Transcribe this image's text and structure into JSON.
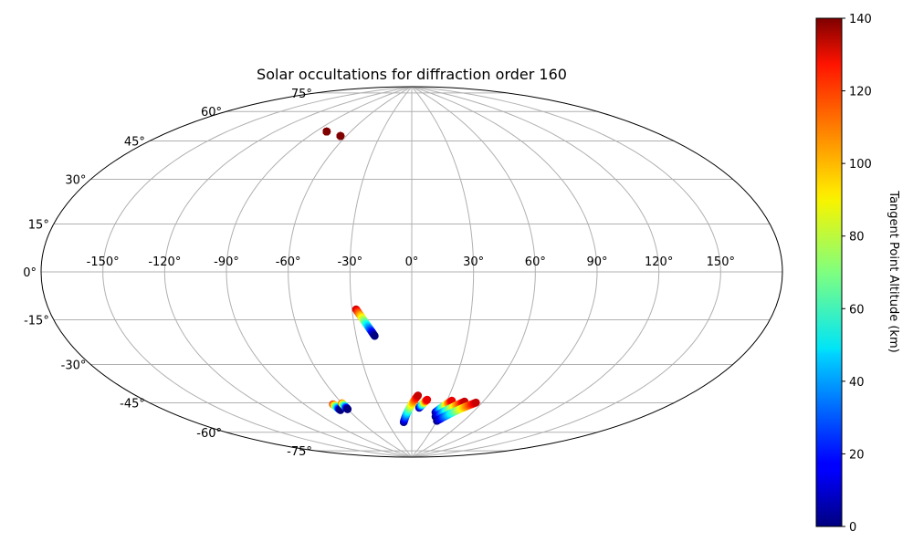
{
  "chart_data": {
    "type": "scatter",
    "projection": "aitoff-like",
    "title": "Solar occultations for diffraction order 160",
    "xlabel": "",
    "ylabel": "",
    "grid": true,
    "x_ticks": [
      "-150°",
      "-120°",
      "-90°",
      "-60°",
      "-30°",
      "0°",
      "30°",
      "60°",
      "90°",
      "120°",
      "150°"
    ],
    "x_tick_values": [
      -150,
      -120,
      -90,
      -60,
      -30,
      0,
      30,
      60,
      90,
      120,
      150
    ],
    "y_ticks": [
      "75°",
      "60°",
      "45°",
      "30°",
      "15°",
      "0°",
      "-15°",
      "-30°",
      "-45°",
      "-60°",
      "-75°"
    ],
    "y_tick_values": [
      75,
      60,
      45,
      30,
      15,
      0,
      -15,
      -30,
      -45,
      -60,
      -75
    ],
    "colorbar": {
      "label": "Tangent Point Altitude (km)",
      "range": [
        0,
        140
      ],
      "ticks": [
        "0",
        "20",
        "40",
        "60",
        "80",
        "100",
        "120",
        "140"
      ],
      "tick_values": [
        0,
        20,
        40,
        60,
        80,
        100,
        120,
        140
      ],
      "colormap": "jet"
    },
    "tracks": [
      {
        "lon_start": -81,
        "lat_start": 65,
        "lon_end": -81,
        "lat_end": 65,
        "alt_start": 130,
        "alt_end": 140
      },
      {
        "lon_start": -65,
        "lat_start": 64,
        "lon_end": -65,
        "lat_end": 64,
        "alt_start": 130,
        "alt_end": 140
      },
      {
        "lon_start": -28,
        "lat_start": -18,
        "lon_end": -20,
        "lat_end": -31,
        "alt_start": 130,
        "alt_end": 0
      },
      {
        "lon_start": -68,
        "lat_start": -62,
        "lon_end": -67,
        "lat_end": -65,
        "alt_start": 120,
        "alt_end": 0
      },
      {
        "lon_start": -60,
        "lat_start": -62,
        "lon_end": -60,
        "lat_end": -65,
        "alt_start": 110,
        "alt_end": 0
      },
      {
        "lon_start": -10,
        "lat_start": -73,
        "lon_end": 5,
        "lat_end": -60,
        "alt_start": 0,
        "alt_end": 130
      },
      {
        "lon_start": 7,
        "lat_start": -66,
        "lon_end": 13,
        "lat_end": -62,
        "alt_start": 0,
        "alt_end": 125
      },
      {
        "lon_start": 24,
        "lat_start": -68,
        "lon_end": 34,
        "lat_end": -62,
        "alt_start": 0,
        "alt_end": 125
      },
      {
        "lon_start": 26,
        "lat_start": -70,
        "lon_end": 45,
        "lat_end": -62,
        "alt_start": 0,
        "alt_end": 130
      },
      {
        "lon_start": 30,
        "lat_start": -72,
        "lon_end": 55,
        "lat_end": -62,
        "alt_start": 0,
        "alt_end": 130
      }
    ]
  }
}
